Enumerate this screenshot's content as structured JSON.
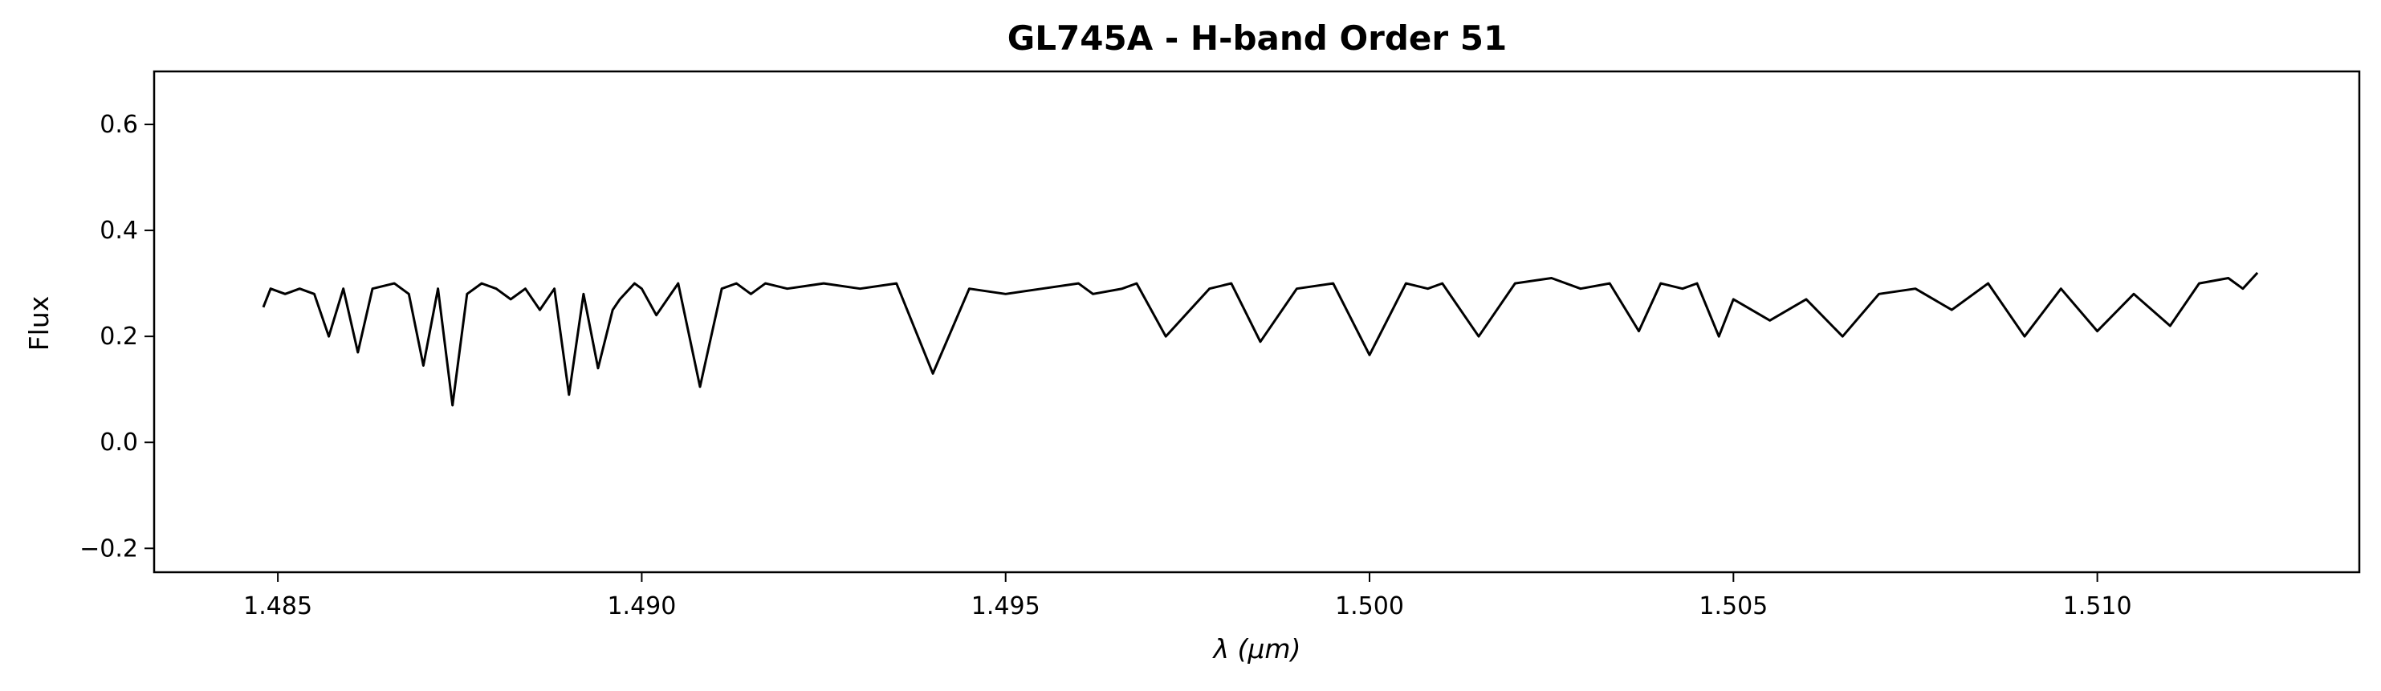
{
  "chart_data": {
    "type": "line",
    "title": "GL745A - H-band Order 51",
    "xlabel": "λ (μm)",
    "ylabel": "Flux",
    "xlim": [
      1.4833,
      1.5136
    ],
    "ylim": [
      -0.245,
      0.7
    ],
    "x_ticks": [
      1.485,
      1.49,
      1.495,
      1.5,
      1.505,
      1.51
    ],
    "x_tick_labels": [
      "1.485",
      "1.490",
      "1.495",
      "1.500",
      "1.505",
      "1.510"
    ],
    "y_ticks": [
      -0.2,
      0.0,
      0.2,
      0.4,
      0.6
    ],
    "y_tick_labels": [
      "−0.2",
      "0.0",
      "0.2",
      "0.4",
      "0.6"
    ],
    "grid": false,
    "line_color": "#000000",
    "series": [
      {
        "x": [
          1.4848,
          1.4849,
          1.4851,
          1.4853,
          1.4855,
          1.4857,
          1.4859,
          1.4861,
          1.4863,
          1.4866,
          1.4868,
          1.487,
          1.4872,
          1.4874,
          1.4876,
          1.4878,
          1.488,
          1.4882,
          1.4884,
          1.4886,
          1.4888,
          1.489,
          1.4892,
          1.4894,
          1.4896,
          1.4897,
          1.4899,
          1.49,
          1.4902,
          1.4905,
          1.4908,
          1.4911,
          1.4913,
          1.4915,
          1.4917,
          1.492,
          1.4925,
          1.493,
          1.4935,
          1.494,
          1.4945,
          1.495,
          1.4955,
          1.496,
          1.4962,
          1.4966,
          1.4968,
          1.4972,
          1.4978,
          1.4981,
          1.4985,
          1.499,
          1.4995,
          1.5,
          1.5005,
          1.5008,
          1.501,
          1.5015,
          1.502,
          1.5025,
          1.5029,
          1.5033,
          1.5037,
          1.504,
          1.5043,
          1.5045,
          1.5048,
          1.505,
          1.5055,
          1.506,
          1.5065,
          1.507,
          1.5075,
          1.508,
          1.5085,
          1.509,
          1.5095,
          1.51,
          1.5105,
          1.511,
          1.5114,
          1.5118,
          1.512,
          1.5122
        ],
        "y": [
          0.255,
          0.29,
          0.28,
          0.29,
          0.28,
          0.2,
          0.29,
          0.17,
          0.29,
          0.3,
          0.28,
          0.145,
          0.29,
          0.07,
          0.28,
          0.3,
          0.29,
          0.27,
          0.29,
          0.25,
          0.29,
          0.09,
          0.28,
          0.14,
          0.25,
          0.27,
          0.3,
          0.29,
          0.24,
          0.3,
          0.105,
          0.29,
          0.3,
          0.28,
          0.3,
          0.29,
          0.3,
          0.29,
          0.3,
          0.13,
          0.29,
          0.28,
          0.29,
          0.3,
          0.28,
          0.29,
          0.3,
          0.2,
          0.29,
          0.3,
          0.19,
          0.29,
          0.3,
          0.165,
          0.3,
          0.29,
          0.3,
          0.2,
          0.3,
          0.31,
          0.29,
          0.3,
          0.21,
          0.3,
          0.29,
          0.3,
          0.2,
          0.27,
          0.23,
          0.27,
          0.2,
          0.28,
          0.29,
          0.25,
          0.3,
          0.2,
          0.29,
          0.21,
          0.28,
          0.22,
          0.3,
          0.31,
          0.29,
          0.32
        ]
      }
    ]
  }
}
